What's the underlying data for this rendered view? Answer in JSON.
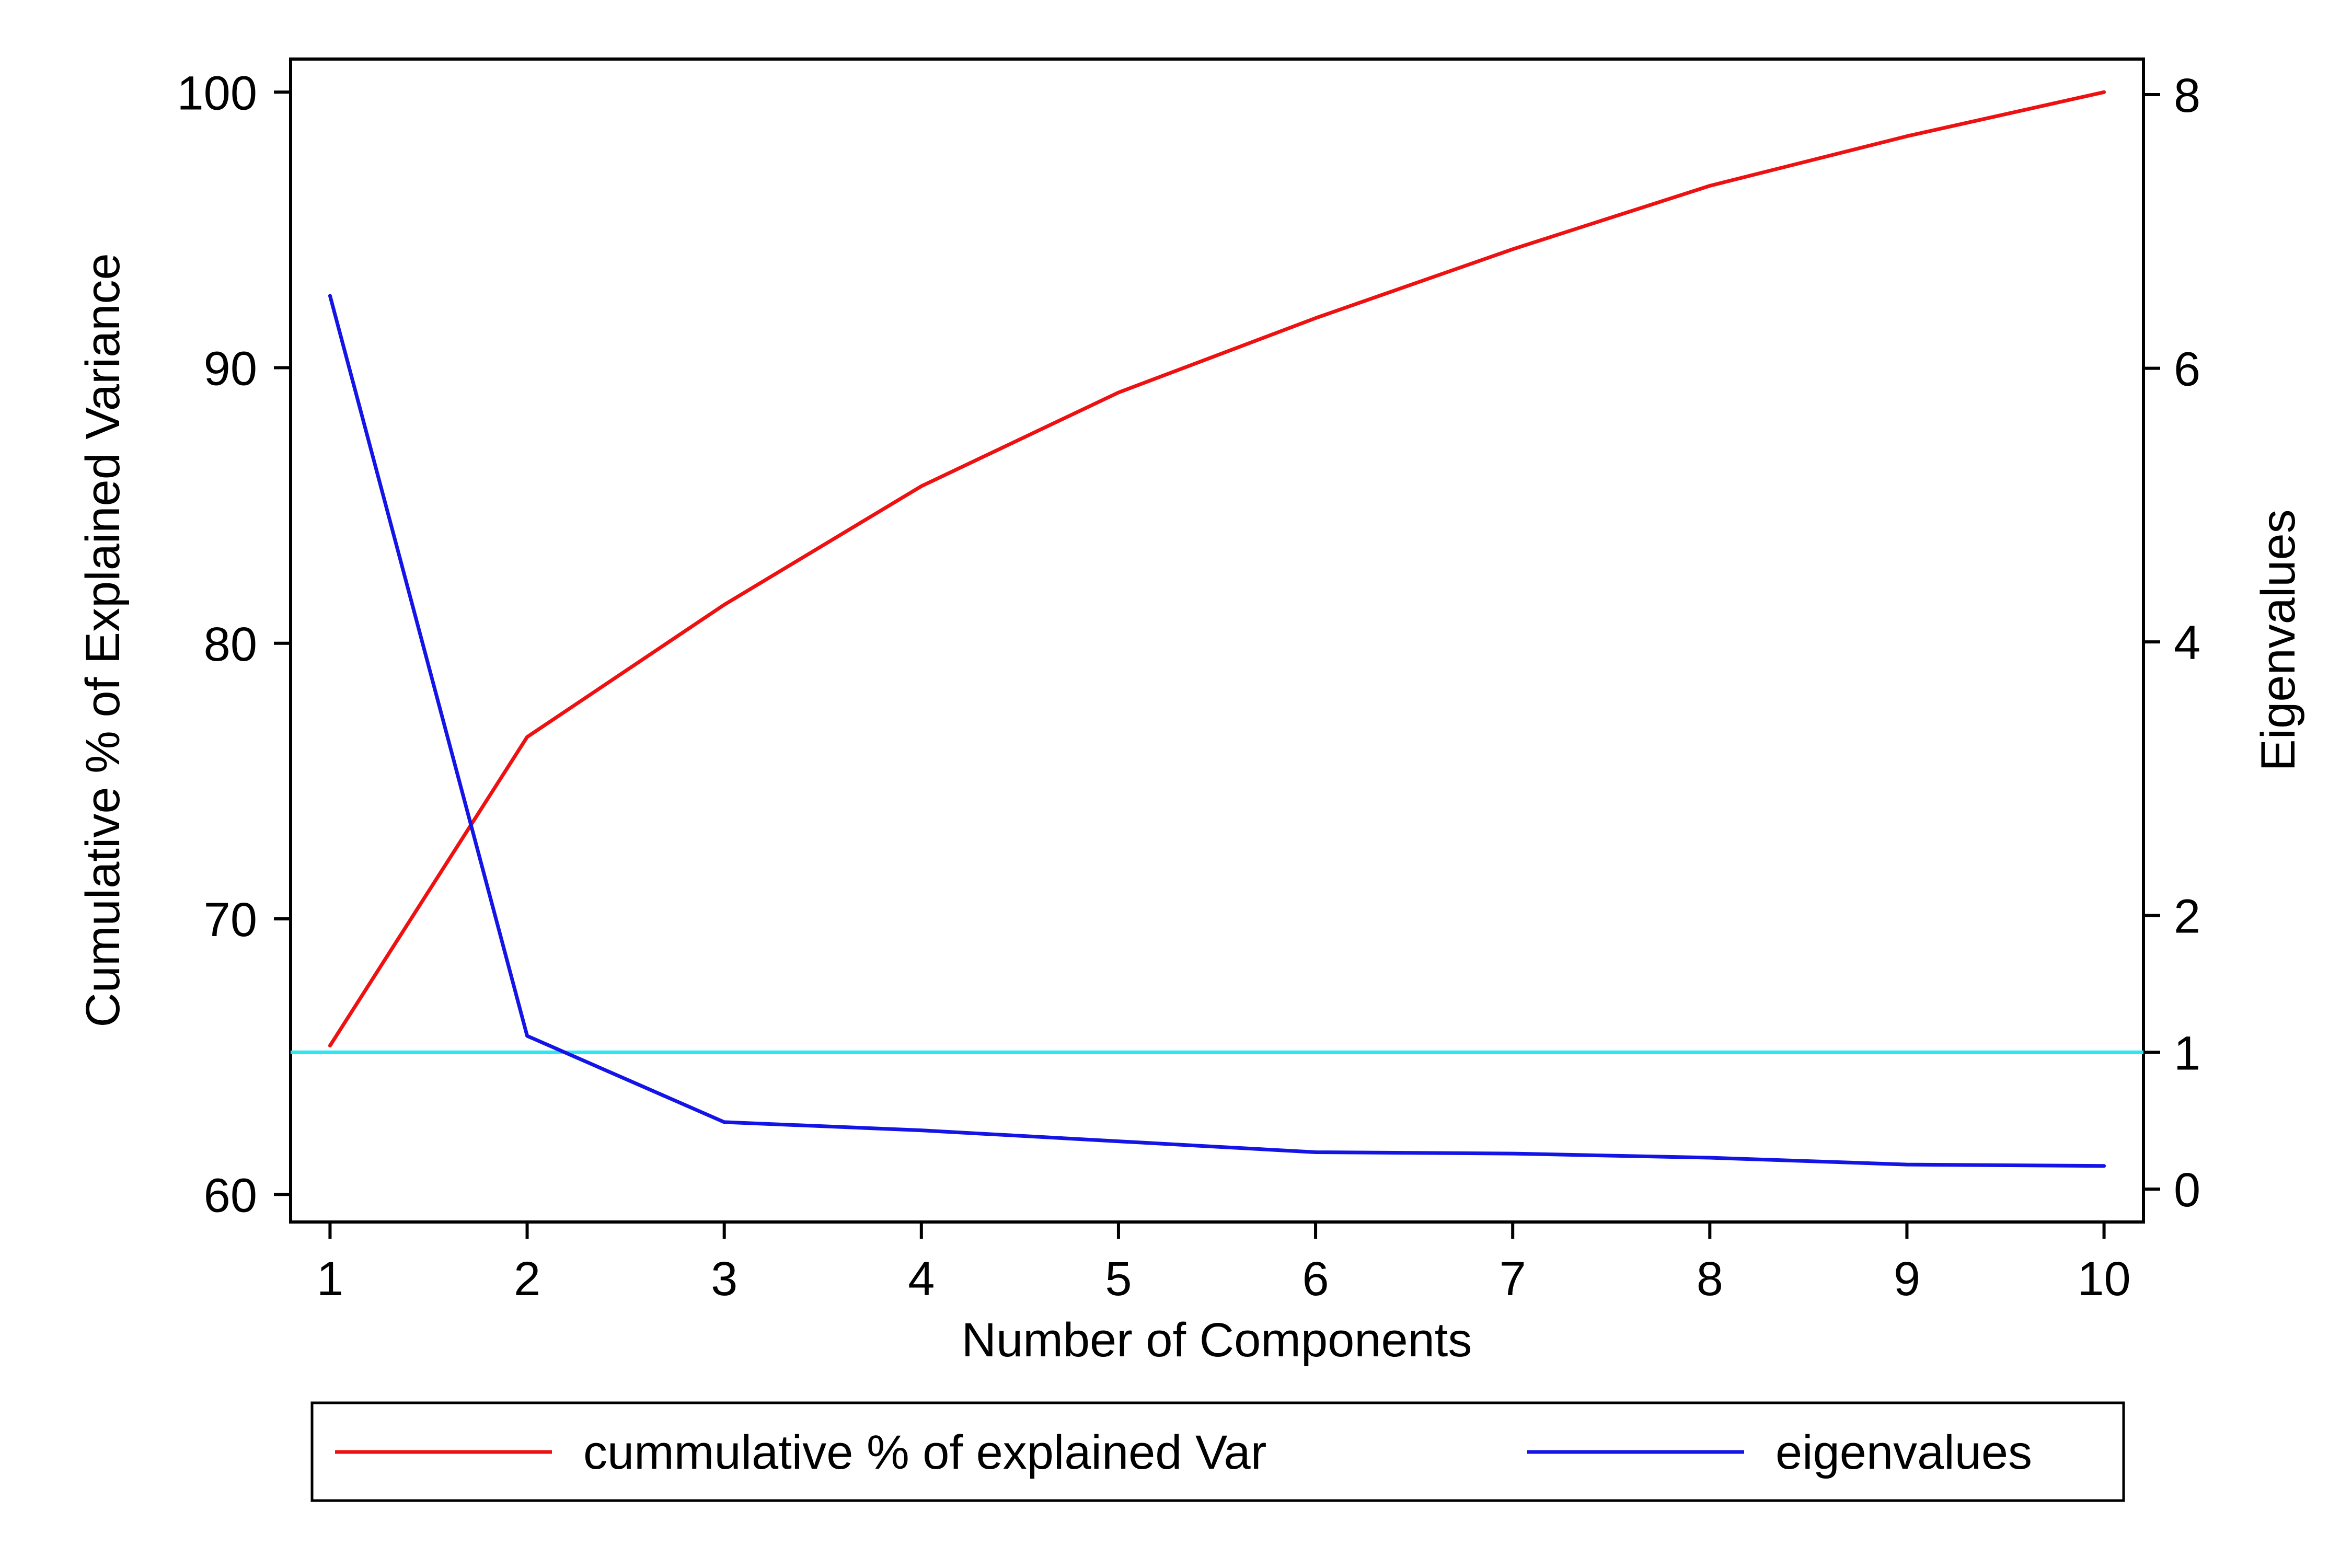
{
  "chart_data": {
    "type": "line",
    "x": [
      1,
      2,
      3,
      4,
      5,
      6,
      7,
      8,
      9,
      10
    ],
    "xlabel": "Number of Components",
    "ylabel_left": "Cumulative % of Explained Variance",
    "ylabel_right": "Eigenvalues",
    "xlim": [
      0.8,
      10.2
    ],
    "ylim_left": [
      59,
      101.2
    ],
    "ylim_right": [
      -0.24,
      8.26
    ],
    "xticks": [
      1,
      2,
      3,
      4,
      5,
      6,
      7,
      8,
      9,
      10
    ],
    "yticks_left": [
      60,
      70,
      80,
      90,
      100
    ],
    "yticks_right": [
      0,
      2,
      4,
      6,
      8
    ],
    "yticks_right_extra": [
      1
    ],
    "series": [
      {
        "name": "cummulative % of explained Var",
        "axis": "left",
        "color": "#ee1111",
        "values": [
          65.4,
          76.6,
          81.4,
          85.7,
          89.1,
          91.8,
          94.3,
          96.6,
          98.4,
          100.0
        ]
      },
      {
        "name": "eigenvalues",
        "axis": "right",
        "color": "#1414e6",
        "values": [
          6.53,
          1.12,
          0.49,
          0.43,
          0.35,
          0.27,
          0.26,
          0.23,
          0.18,
          0.17
        ]
      }
    ],
    "reference_line": {
      "axis": "right",
      "value": 1,
      "color": "#2ee6f0"
    },
    "grid": false,
    "legend_position": "bottom"
  }
}
